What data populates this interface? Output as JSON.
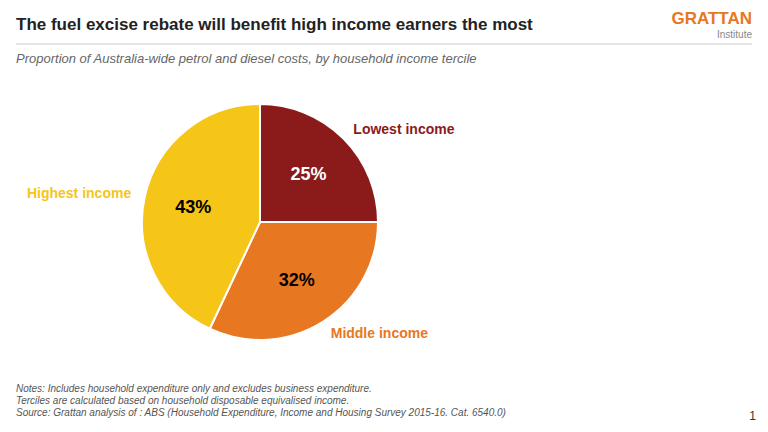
{
  "chart_data": {
    "type": "pie",
    "title": "The fuel excise rebate will benefit high income earners the most",
    "subtitle": "Proportion of Australia-wide petrol and diesel costs, by household income tercile",
    "categories": [
      "Lowest income",
      "Middle income",
      "Highest income"
    ],
    "values": [
      25,
      32,
      43
    ],
    "value_labels": [
      "25%",
      "32%",
      "43%"
    ],
    "colors": [
      "#8B1A1A",
      "#E87722",
      "#F5C518"
    ],
    "data_labels": true,
    "notes": "Notes: Includes household expenditure only and excludes business expenditure.\nTerciles are calculated based on household disposable equivalised income.\nSource: Grattan analysis of : ABS (Household Expenditure, Income and Housing Survey 2015-16. Cat. 6540.0)",
    "annotations": [
      "GRATTAN",
      "Institute",
      "1"
    ]
  }
}
